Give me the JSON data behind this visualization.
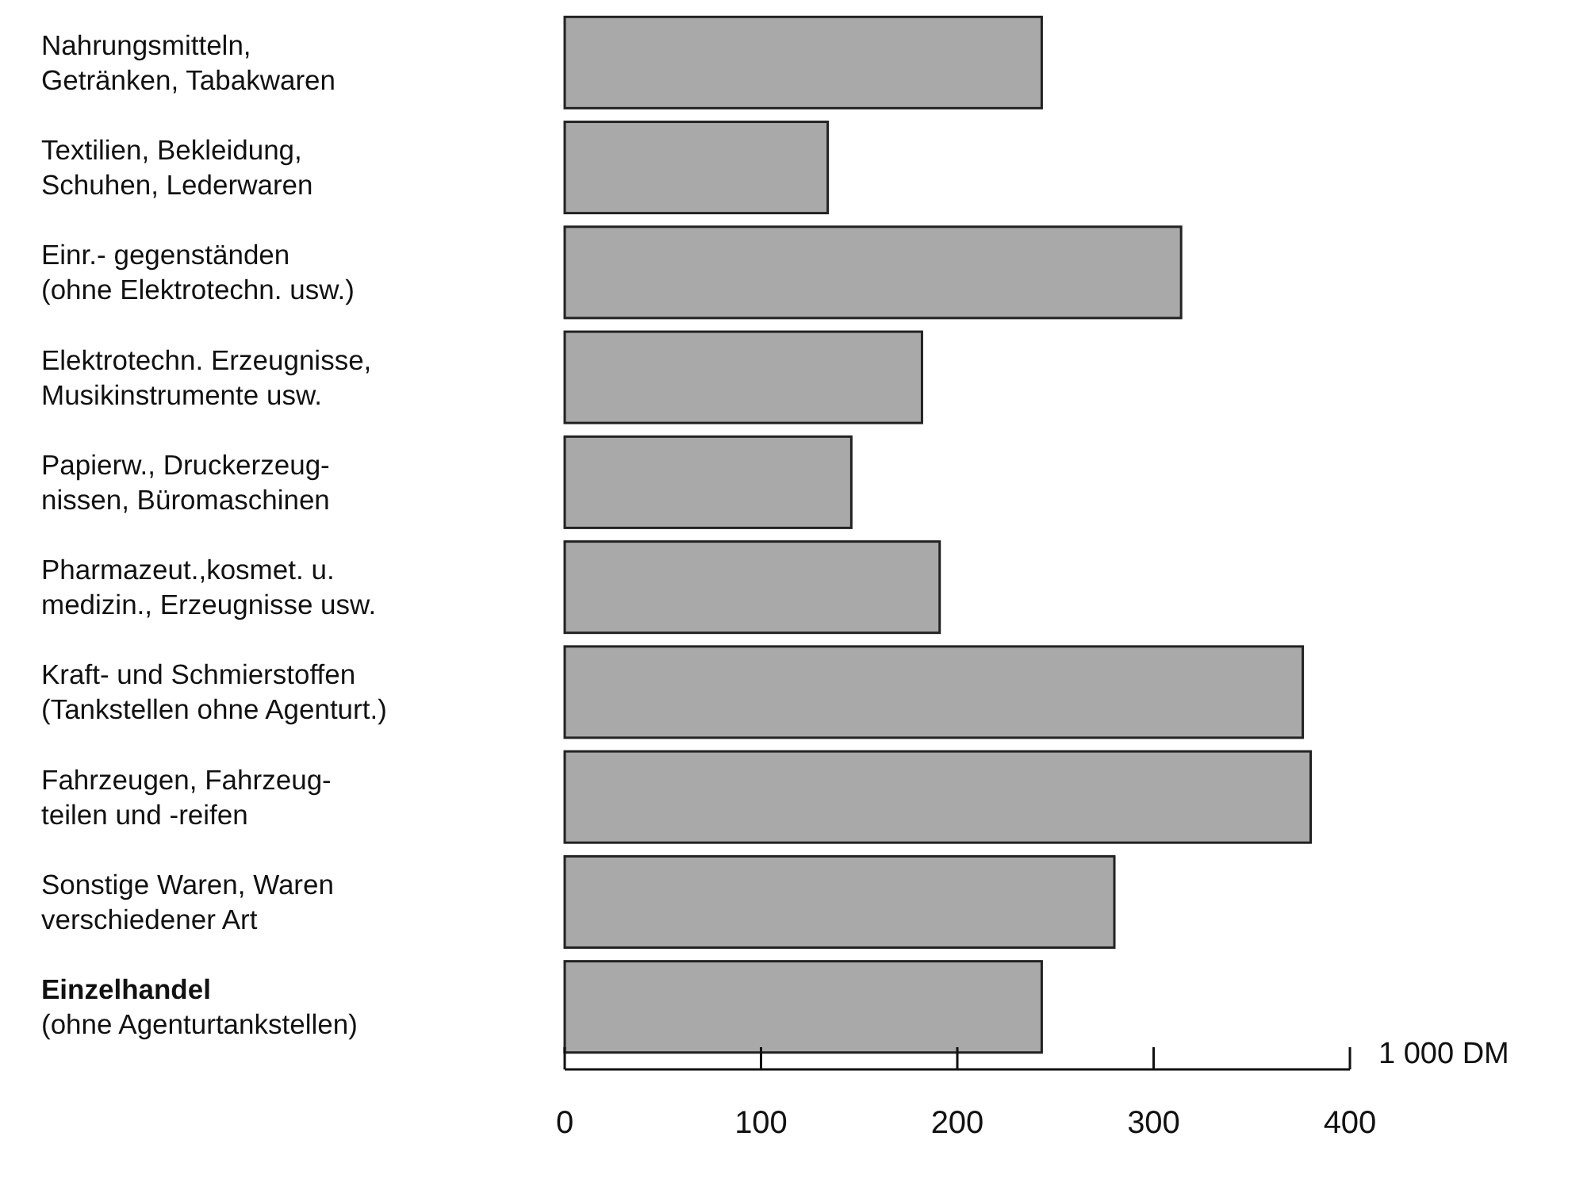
{
  "chart_data": {
    "type": "bar",
    "orientation": "horizontal",
    "xlabel": "1 000 DM",
    "categories": [
      "Nahrungsmitteln,\nGetränken, Tabakwaren",
      "Textilien, Bekleidung,\nSchuhen, Lederwaren",
      "Einr.- gegenständen\n(ohne Elektrotechn. usw.)",
      "Elektrotechn. Erzeugnisse,\nMusikinstrumente usw.",
      "Papierw., Druckerzeug-\nnissen, Büromaschinen",
      "Pharmazeut.,kosmet. u.\nmedizin., Erzeugnisse usw.",
      "Kraft- und Schmierstoffen\n(Tankstellen ohne Agenturt.)",
      "Fahrzeugen, Fahrzeug-\nteilen und -reifen",
      "Sonstige Waren, Waren\nverschiedener Art",
      "Einzelhandel\n(ohne Agenturtankstellen)"
    ],
    "values": [
      243,
      134,
      314,
      182,
      146,
      191,
      376,
      380,
      280,
      243
    ],
    "color": "#a9a9a9",
    "xlim": [
      0,
      400
    ],
    "xticks": [
      0,
      100,
      200,
      300,
      400
    ]
  }
}
